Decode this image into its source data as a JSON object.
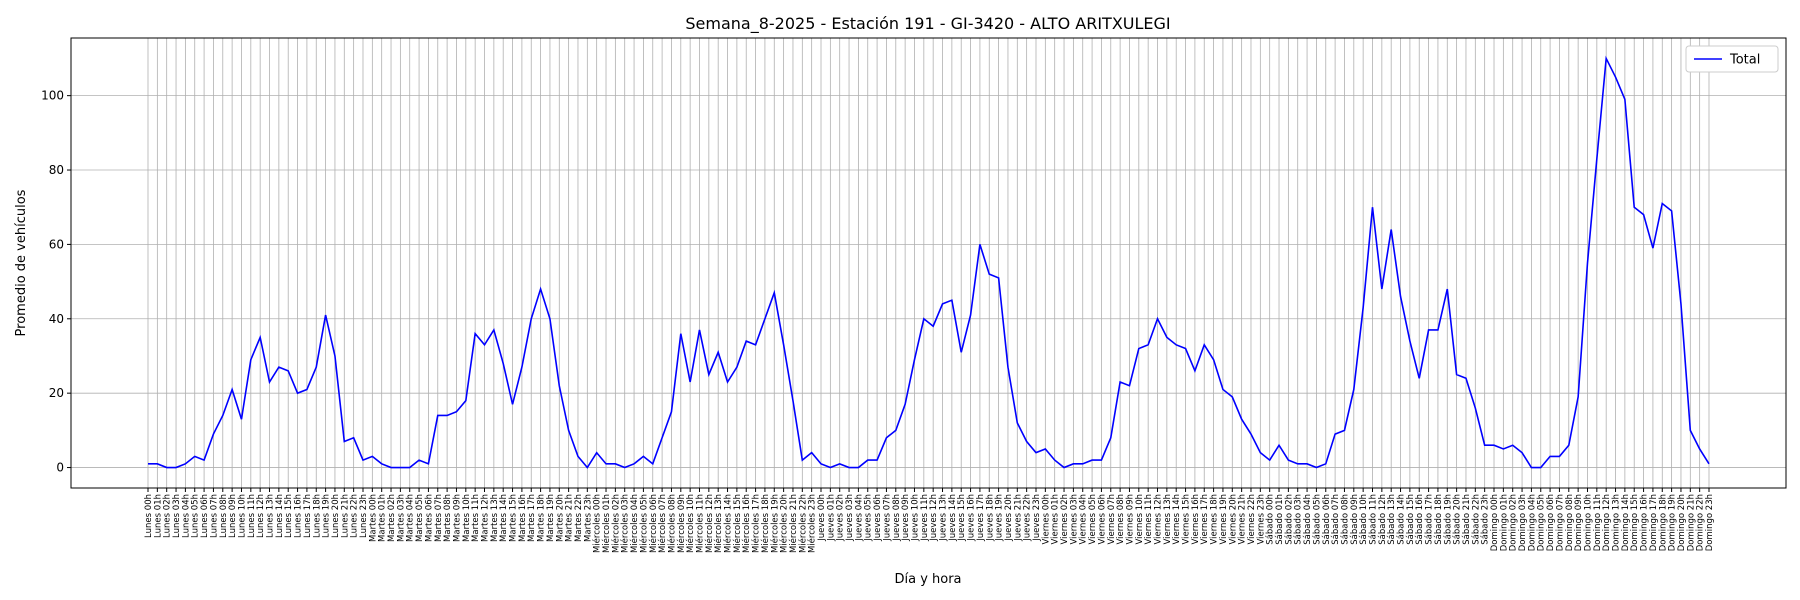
{
  "chart_data": {
    "type": "line",
    "title": "Semana_8-2025 - Estación 191 - GI-3420  - ALTO ARITXULEGI",
    "xlabel": "Día y hora",
    "ylabel": "Promedio de vehículos",
    "categories": [
      "Lunes 00h",
      "Lunes 01h",
      "Lunes 02h",
      "Lunes 03h",
      "Lunes 04h",
      "Lunes 05h",
      "Lunes 06h",
      "Lunes 07h",
      "Lunes 08h",
      "Lunes 09h",
      "Lunes 10h",
      "Lunes 11h",
      "Lunes 12h",
      "Lunes 13h",
      "Lunes 14h",
      "Lunes 15h",
      "Lunes 16h",
      "Lunes 17h",
      "Lunes 18h",
      "Lunes 19h",
      "Lunes 20h",
      "Lunes 21h",
      "Lunes 22h",
      "Lunes 23h",
      "Martes 00h",
      "Martes 01h",
      "Martes 02h",
      "Martes 03h",
      "Martes 04h",
      "Martes 05h",
      "Martes 06h",
      "Martes 07h",
      "Martes 08h",
      "Martes 09h",
      "Martes 10h",
      "Martes 11h",
      "Martes 12h",
      "Martes 13h",
      "Martes 14h",
      "Martes 15h",
      "Martes 16h",
      "Martes 17h",
      "Martes 18h",
      "Martes 19h",
      "Martes 20h",
      "Martes 21h",
      "Martes 22h",
      "Martes 23h",
      "Miércoles 00h",
      "Miércoles 01h",
      "Miércoles 02h",
      "Miércoles 03h",
      "Miércoles 04h",
      "Miércoles 05h",
      "Miércoles 06h",
      "Miércoles 07h",
      "Miércoles 08h",
      "Miércoles 09h",
      "Miércoles 10h",
      "Miércoles 11h",
      "Miércoles 12h",
      "Miércoles 13h",
      "Miércoles 14h",
      "Miércoles 15h",
      "Miércoles 16h",
      "Miércoles 17h",
      "Miércoles 18h",
      "Miércoles 19h",
      "Miércoles 20h",
      "Miércoles 21h",
      "Miércoles 22h",
      "Miércoles 23h",
      "Jueves 00h",
      "Jueves 01h",
      "Jueves 02h",
      "Jueves 03h",
      "Jueves 04h",
      "Jueves 05h",
      "Jueves 06h",
      "Jueves 07h",
      "Jueves 08h",
      "Jueves 09h",
      "Jueves 10h",
      "Jueves 11h",
      "Jueves 12h",
      "Jueves 13h",
      "Jueves 14h",
      "Jueves 15h",
      "Jueves 16h",
      "Jueves 17h",
      "Jueves 18h",
      "Jueves 19h",
      "Jueves 20h",
      "Jueves 21h",
      "Jueves 22h",
      "Jueves 23h",
      "Viernes 00h",
      "Viernes 01h",
      "Viernes 02h",
      "Viernes 03h",
      "Viernes 04h",
      "Viernes 05h",
      "Viernes 06h",
      "Viernes 07h",
      "Viernes 08h",
      "Viernes 09h",
      "Viernes 10h",
      "Viernes 11h",
      "Viernes 12h",
      "Viernes 13h",
      "Viernes 14h",
      "Viernes 15h",
      "Viernes 16h",
      "Viernes 17h",
      "Viernes 18h",
      "Viernes 19h",
      "Viernes 20h",
      "Viernes 21h",
      "Viernes 22h",
      "Viernes 23h",
      "Sábado 00h",
      "Sábado 01h",
      "Sábado 02h",
      "Sábado 03h",
      "Sábado 04h",
      "Sábado 05h",
      "Sábado 06h",
      "Sábado 07h",
      "Sábado 08h",
      "Sábado 09h",
      "Sábado 10h",
      "Sábado 11h",
      "Sábado 12h",
      "Sábado 13h",
      "Sábado 14h",
      "Sábado 15h",
      "Sábado 16h",
      "Sábado 17h",
      "Sábado 18h",
      "Sábado 19h",
      "Sábado 20h",
      "Sábado 21h",
      "Sábado 22h",
      "Sábado 23h",
      "Domingo 00h",
      "Domingo 01h",
      "Domingo 02h",
      "Domingo 03h",
      "Domingo 04h",
      "Domingo 05h",
      "Domingo 06h",
      "Domingo 07h",
      "Domingo 08h",
      "Domingo 09h",
      "Domingo 10h",
      "Domingo 11h",
      "Domingo 12h",
      "Domingo 13h",
      "Domingo 14h",
      "Domingo 15h",
      "Domingo 16h",
      "Domingo 17h",
      "Domingo 18h",
      "Domingo 19h",
      "Domingo 20h",
      "Domingo 21h",
      "Domingo 22h",
      "Domingo 23h"
    ],
    "series": [
      {
        "name": "Total",
        "color": "#0000ff",
        "values": [
          1,
          1,
          0,
          0,
          1,
          3,
          2,
          9,
          14,
          21,
          13,
          29,
          35,
          23,
          27,
          26,
          20,
          21,
          27,
          41,
          30,
          7,
          8,
          2,
          3,
          1,
          0,
          0,
          0,
          2,
          1,
          14,
          14,
          15,
          18,
          36,
          33,
          37,
          28,
          17,
          27,
          40,
          48,
          40,
          22,
          10,
          3,
          0,
          4,
          1,
          1,
          0,
          1,
          3,
          1,
          8,
          15,
          36,
          23,
          37,
          25,
          31,
          23,
          27,
          34,
          33,
          40,
          47,
          33,
          18,
          2,
          4,
          1,
          0,
          1,
          0,
          0,
          2,
          2,
          8,
          10,
          17,
          29,
          40,
          38,
          44,
          45,
          31,
          41,
          60,
          52,
          51,
          27,
          12,
          7,
          4,
          5,
          2,
          0,
          1,
          1,
          2,
          2,
          8,
          23,
          22,
          32,
          33,
          40,
          35,
          33,
          32,
          26,
          33,
          29,
          21,
          19,
          13,
          9,
          4,
          2,
          6,
          2,
          1,
          1,
          0,
          1,
          9,
          10,
          21,
          43,
          70,
          48,
          64,
          46,
          34,
          24,
          37,
          37,
          48,
          25,
          24,
          16,
          6,
          6,
          5,
          6,
          4,
          0,
          0,
          3,
          3,
          6,
          19,
          55,
          83,
          110,
          105,
          99,
          70,
          68,
          59,
          71,
          69,
          44,
          10,
          5,
          1
        ]
      }
    ],
    "ylim": [
      -5.5,
      115.5
    ],
    "yticks": [
      0,
      20,
      40,
      60,
      80,
      100
    ],
    "grid": true,
    "legend": "upper right"
  }
}
